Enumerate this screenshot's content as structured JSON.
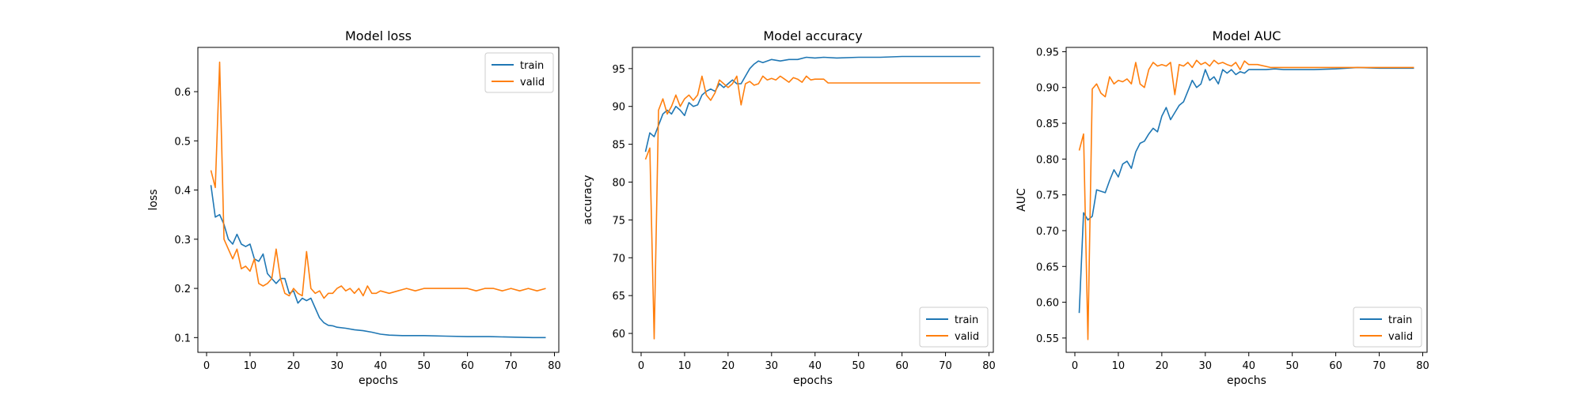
{
  "colors": {
    "train": "#1f77b4",
    "valid": "#ff7f0e"
  },
  "chart_data": [
    {
      "type": "line",
      "title": "Model loss",
      "xlabel": "epochs",
      "ylabel": "loss",
      "xlim": [
        -2,
        81
      ],
      "ylim": [
        0.07,
        0.69
      ],
      "xticks": [
        0,
        10,
        20,
        30,
        40,
        50,
        60,
        70,
        80
      ],
      "yticks": [
        0.1,
        0.2,
        0.3,
        0.4,
        0.5,
        0.6
      ],
      "yticklabels": [
        "0.1",
        "0.2",
        "0.3",
        "0.4",
        "0.5",
        "0.6"
      ],
      "legend": "top-right",
      "series": [
        {
          "name": "train",
          "color": "#1f77b4",
          "x": [
            1,
            2,
            3,
            4,
            5,
            6,
            7,
            8,
            9,
            10,
            11,
            12,
            13,
            14,
            15,
            16,
            17,
            18,
            19,
            20,
            21,
            22,
            23,
            24,
            25,
            26,
            27,
            28,
            29,
            30,
            32,
            34,
            36,
            38,
            40,
            42,
            45,
            50,
            55,
            60,
            65,
            70,
            75,
            78
          ],
          "y": [
            0.41,
            0.345,
            0.35,
            0.33,
            0.3,
            0.29,
            0.31,
            0.29,
            0.285,
            0.29,
            0.26,
            0.255,
            0.27,
            0.23,
            0.22,
            0.21,
            0.22,
            0.22,
            0.19,
            0.195,
            0.17,
            0.18,
            0.175,
            0.18,
            0.16,
            0.14,
            0.13,
            0.125,
            0.124,
            0.121,
            0.119,
            0.116,
            0.114,
            0.111,
            0.107,
            0.105,
            0.104,
            0.104,
            0.103,
            0.102,
            0.102,
            0.101,
            0.1,
            0.1
          ]
        },
        {
          "name": "valid",
          "color": "#ff7f0e",
          "x": [
            1,
            2,
            3,
            4,
            5,
            6,
            7,
            8,
            9,
            10,
            11,
            12,
            13,
            14,
            15,
            16,
            17,
            18,
            19,
            20,
            21,
            22,
            23,
            24,
            25,
            26,
            27,
            28,
            29,
            30,
            31,
            32,
            33,
            34,
            35,
            36,
            37,
            38,
            39,
            40,
            42,
            44,
            46,
            48,
            50,
            52,
            54,
            56,
            58,
            60,
            62,
            64,
            66,
            68,
            70,
            72,
            74,
            76,
            78
          ],
          "y": [
            0.44,
            0.405,
            0.66,
            0.3,
            0.28,
            0.26,
            0.28,
            0.24,
            0.245,
            0.235,
            0.26,
            0.21,
            0.205,
            0.21,
            0.22,
            0.28,
            0.22,
            0.19,
            0.185,
            0.2,
            0.19,
            0.185,
            0.275,
            0.2,
            0.19,
            0.195,
            0.18,
            0.19,
            0.19,
            0.2,
            0.205,
            0.195,
            0.2,
            0.19,
            0.2,
            0.185,
            0.205,
            0.19,
            0.19,
            0.195,
            0.19,
            0.195,
            0.2,
            0.195,
            0.2,
            0.2,
            0.2,
            0.2,
            0.2,
            0.2,
            0.195,
            0.2,
            0.2,
            0.195,
            0.2,
            0.195,
            0.2,
            0.195,
            0.2
          ]
        }
      ]
    },
    {
      "type": "line",
      "title": "Model accuracy",
      "xlabel": "epochs",
      "ylabel": "accuracy",
      "xlim": [
        -2,
        81
      ],
      "ylim": [
        57.5,
        97.8
      ],
      "xticks": [
        0,
        10,
        20,
        30,
        40,
        50,
        60,
        70,
        80
      ],
      "yticks": [
        60,
        65,
        70,
        75,
        80,
        85,
        90,
        95
      ],
      "yticklabels": [
        "60",
        "65",
        "70",
        "75",
        "80",
        "85",
        "90",
        "95"
      ],
      "legend": "bottom-right",
      "series": [
        {
          "name": "train",
          "color": "#1f77b4",
          "x": [
            1,
            2,
            3,
            4,
            5,
            6,
            7,
            8,
            9,
            10,
            11,
            12,
            13,
            14,
            15,
            16,
            17,
            18,
            19,
            20,
            21,
            22,
            23,
            24,
            25,
            26,
            27,
            28,
            29,
            30,
            32,
            34,
            36,
            38,
            40,
            42,
            45,
            50,
            55,
            60,
            65,
            70,
            75,
            78
          ],
          "y": [
            84.0,
            86.5,
            86.0,
            87.5,
            89.0,
            89.5,
            89.0,
            90.0,
            89.5,
            88.8,
            90.5,
            90.0,
            90.2,
            91.5,
            92.0,
            92.3,
            92.0,
            93.0,
            92.5,
            93.0,
            93.5,
            93.0,
            93.0,
            94.0,
            95.0,
            95.6,
            96.0,
            95.8,
            96.0,
            96.2,
            96.0,
            96.2,
            96.2,
            96.5,
            96.4,
            96.5,
            96.4,
            96.5,
            96.5,
            96.6,
            96.6,
            96.6,
            96.6,
            96.6
          ]
        },
        {
          "name": "valid",
          "color": "#ff7f0e",
          "x": [
            1,
            2,
            3,
            4,
            5,
            6,
            7,
            8,
            9,
            10,
            11,
            12,
            13,
            14,
            15,
            16,
            17,
            18,
            19,
            20,
            21,
            22,
            23,
            24,
            25,
            26,
            27,
            28,
            29,
            30,
            31,
            32,
            33,
            34,
            35,
            36,
            37,
            38,
            39,
            40,
            41,
            42,
            43,
            50,
            60,
            70,
            78
          ],
          "y": [
            83.0,
            84.5,
            59.3,
            89.5,
            91.0,
            89.0,
            90.0,
            91.5,
            90.0,
            91.0,
            91.5,
            90.8,
            91.5,
            94.0,
            91.5,
            90.8,
            91.8,
            93.5,
            93.0,
            92.5,
            93.0,
            94.0,
            90.2,
            93.0,
            93.3,
            92.8,
            93.0,
            94.0,
            93.5,
            93.7,
            93.5,
            94.0,
            93.6,
            93.2,
            93.8,
            93.6,
            93.2,
            94.0,
            93.5,
            93.6,
            93.6,
            93.6,
            93.1,
            93.1,
            93.1,
            93.1,
            93.1
          ]
        }
      ]
    },
    {
      "type": "line",
      "title": "Model AUC",
      "xlabel": "epochs",
      "ylabel": "AUC",
      "xlim": [
        -2,
        81
      ],
      "ylim": [
        0.53,
        0.956
      ],
      "xticks": [
        0,
        10,
        20,
        30,
        40,
        50,
        60,
        70,
        80
      ],
      "yticks": [
        0.55,
        0.6,
        0.65,
        0.7,
        0.75,
        0.8,
        0.85,
        0.9,
        0.95
      ],
      "yticklabels": [
        "0.55",
        "0.60",
        "0.65",
        "0.70",
        "0.75",
        "0.80",
        "0.85",
        "0.90",
        "0.95"
      ],
      "legend": "bottom-right",
      "series": [
        {
          "name": "train",
          "color": "#1f77b4",
          "x": [
            1,
            2,
            3,
            4,
            5,
            6,
            7,
            8,
            9,
            10,
            11,
            12,
            13,
            14,
            15,
            16,
            17,
            18,
            19,
            20,
            21,
            22,
            23,
            24,
            25,
            26,
            27,
            28,
            29,
            30,
            31,
            32,
            33,
            34,
            35,
            36,
            37,
            38,
            39,
            40,
            42,
            44,
            46,
            48,
            50,
            55,
            60,
            65,
            70,
            75,
            78
          ],
          "y": [
            0.585,
            0.725,
            0.715,
            0.72,
            0.757,
            0.755,
            0.753,
            0.77,
            0.785,
            0.775,
            0.793,
            0.797,
            0.787,
            0.81,
            0.822,
            0.825,
            0.835,
            0.843,
            0.838,
            0.86,
            0.872,
            0.855,
            0.865,
            0.875,
            0.88,
            0.895,
            0.91,
            0.9,
            0.905,
            0.925,
            0.91,
            0.915,
            0.905,
            0.925,
            0.92,
            0.925,
            0.918,
            0.922,
            0.92,
            0.925,
            0.925,
            0.925,
            0.926,
            0.925,
            0.925,
            0.925,
            0.926,
            0.928,
            0.927,
            0.927,
            0.927
          ]
        },
        {
          "name": "valid",
          "color": "#ff7f0e",
          "x": [
            1,
            2,
            3,
            4,
            5,
            6,
            7,
            8,
            9,
            10,
            11,
            12,
            13,
            14,
            15,
            16,
            17,
            18,
            19,
            20,
            21,
            22,
            23,
            24,
            25,
            26,
            27,
            28,
            29,
            30,
            31,
            32,
            33,
            34,
            35,
            36,
            37,
            38,
            39,
            40,
            42,
            45,
            50,
            55,
            60,
            65,
            70,
            75,
            78
          ],
          "y": [
            0.812,
            0.835,
            0.548,
            0.898,
            0.905,
            0.892,
            0.887,
            0.915,
            0.905,
            0.91,
            0.908,
            0.912,
            0.905,
            0.935,
            0.905,
            0.9,
            0.925,
            0.935,
            0.93,
            0.932,
            0.93,
            0.935,
            0.89,
            0.932,
            0.93,
            0.935,
            0.928,
            0.938,
            0.932,
            0.935,
            0.93,
            0.938,
            0.933,
            0.935,
            0.932,
            0.93,
            0.935,
            0.925,
            0.937,
            0.932,
            0.932,
            0.928,
            0.928,
            0.928,
            0.928,
            0.928,
            0.928,
            0.928,
            0.928
          ]
        }
      ]
    }
  ]
}
